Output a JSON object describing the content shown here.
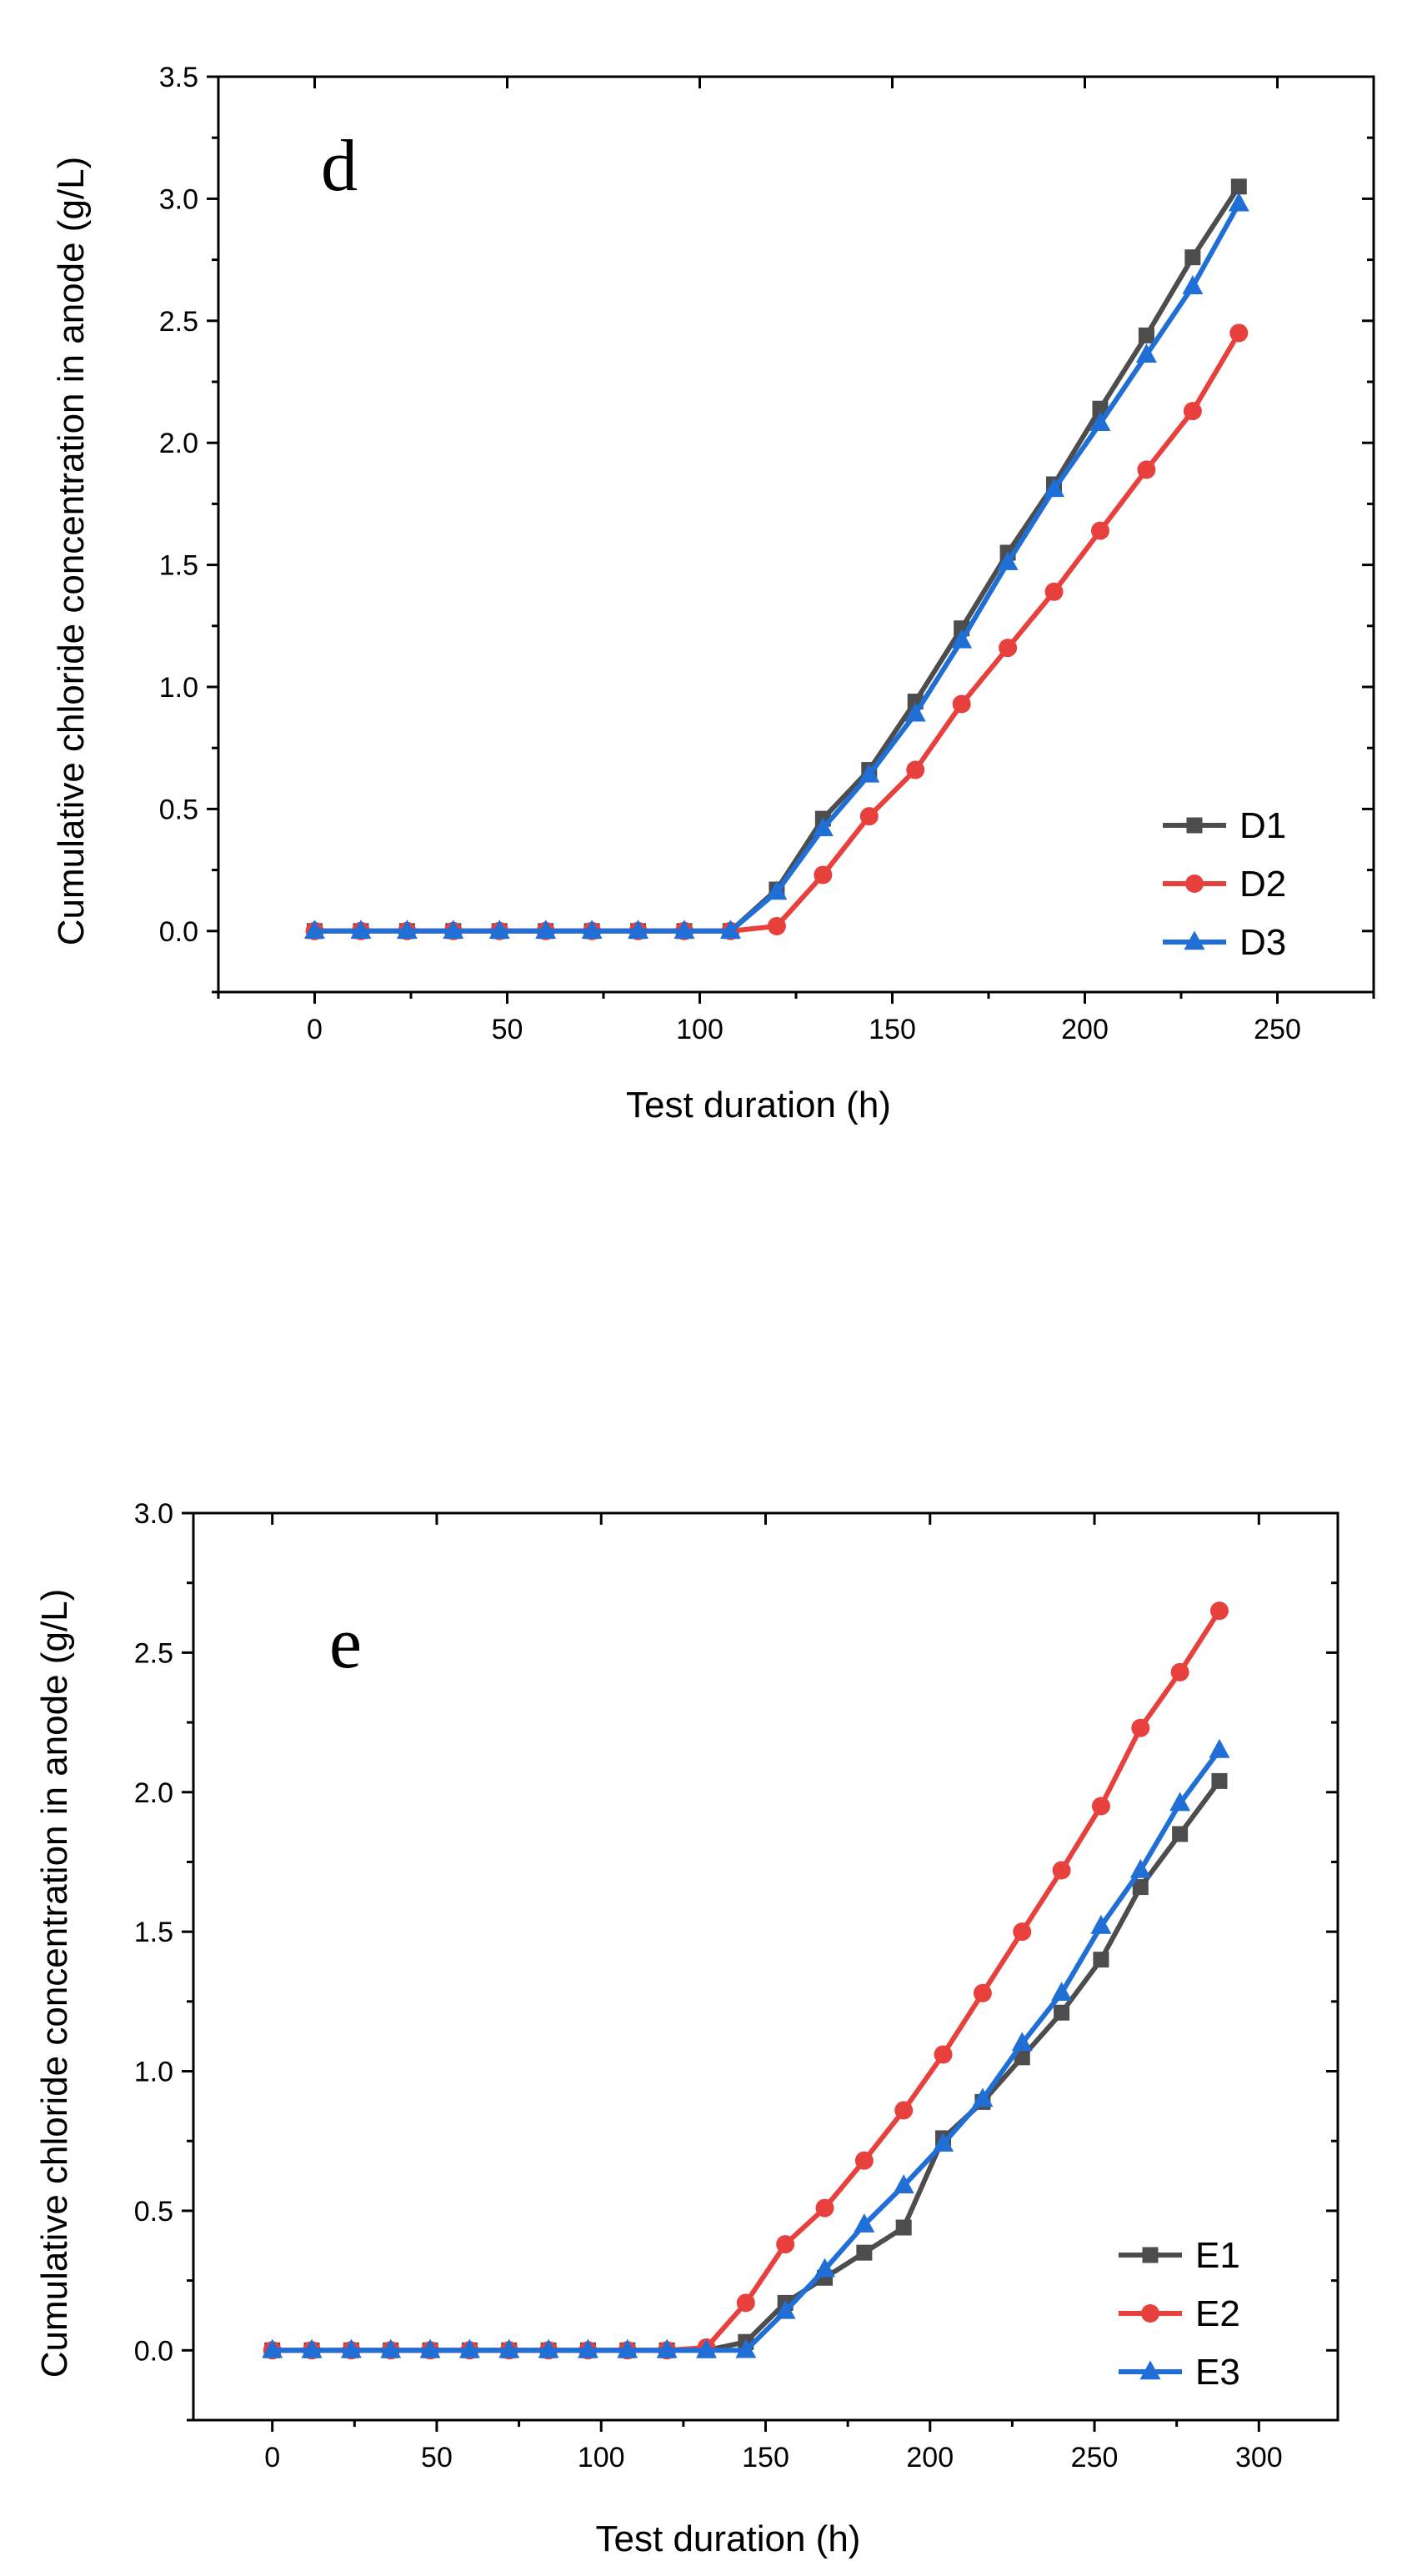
{
  "chart_data": [
    {
      "type": "line",
      "panel_label": "d",
      "xlabel": "Test duration (h)",
      "ylabel": "Cumulative chloride concentration in anode (g/L)",
      "xlim": [
        -25,
        275
      ],
      "ylim": [
        -0.25,
        3.5
      ],
      "x_ticks": [
        0,
        50,
        100,
        150,
        200,
        250
      ],
      "x_tick_labels": [
        "0",
        "50",
        "100",
        "150",
        "200",
        "250"
      ],
      "y_ticks": [
        0,
        0.5,
        1.0,
        1.5,
        2.0,
        2.5,
        3.0,
        3.5
      ],
      "y_tick_labels": [
        "0.0",
        "0.5",
        "1.0",
        "1.5",
        "2.0",
        "2.5",
        "3.0",
        "3.5"
      ],
      "legend_position": "bottom-right",
      "x": [
        0,
        12,
        24,
        36,
        48,
        60,
        72,
        84,
        96,
        108,
        120,
        132,
        144,
        156,
        168,
        180,
        192,
        204,
        216,
        228,
        240
      ],
      "series": [
        {
          "name": "D1",
          "color": "#4d4d4d",
          "marker": "square",
          "values": [
            0,
            0,
            0,
            0,
            0,
            0,
            0,
            0,
            0,
            0,
            0.17,
            0.46,
            0.66,
            0.94,
            1.24,
            1.55,
            1.83,
            2.14,
            2.44,
            2.76,
            3.05
          ]
        },
        {
          "name": "D2",
          "color": "#e8403c",
          "marker": "circle",
          "values": [
            0,
            0,
            0,
            0,
            0,
            0,
            0,
            0,
            0,
            0,
            0.02,
            0.23,
            0.47,
            0.66,
            0.93,
            1.16,
            1.39,
            1.64,
            1.89,
            2.13,
            2.45
          ]
        },
        {
          "name": "D3",
          "color": "#1f6fd6",
          "marker": "triangle",
          "values": [
            0,
            0,
            0,
            0,
            0,
            0,
            0,
            0,
            0,
            0,
            0.16,
            0.42,
            0.64,
            0.89,
            1.19,
            1.51,
            1.81,
            2.08,
            2.36,
            2.64,
            2.98
          ]
        }
      ]
    },
    {
      "type": "line",
      "panel_label": "e",
      "xlabel": "Test duration (h)",
      "ylabel": "Cumulative chloride concentration in anode (g/L)",
      "xlim": [
        -24,
        324
      ],
      "ylim": [
        -0.25,
        3.0
      ],
      "x_ticks": [
        0,
        50,
        100,
        150,
        200,
        250,
        300
      ],
      "x_tick_labels": [
        "0",
        "50",
        "100",
        "150",
        "200",
        "250",
        "300"
      ],
      "y_ticks": [
        0,
        0.5,
        1.0,
        1.5,
        2.0,
        2.5,
        3.0
      ],
      "y_tick_labels": [
        "0.0",
        "0.5",
        "1.0",
        "1.5",
        "2.0",
        "2.5",
        "3.0"
      ],
      "legend_position": "bottom-right",
      "x": [
        0,
        12,
        24,
        36,
        48,
        60,
        72,
        84,
        96,
        108,
        120,
        132,
        144,
        156,
        168,
        180,
        192,
        204,
        216,
        228,
        240,
        252,
        264,
        276,
        288
      ],
      "series": [
        {
          "name": "E1",
          "color": "#4d4d4d",
          "marker": "square",
          "values": [
            0,
            0,
            0,
            0,
            0,
            0,
            0,
            0,
            0,
            0,
            0,
            0,
            0.03,
            0.17,
            0.26,
            0.35,
            0.44,
            0.76,
            0.89,
            1.05,
            1.21,
            1.4,
            1.66,
            1.85,
            2.04
          ]
        },
        {
          "name": "E2",
          "color": "#e8403c",
          "marker": "circle",
          "values": [
            0,
            0,
            0,
            0,
            0,
            0,
            0,
            0,
            0,
            0,
            0,
            0.01,
            0.17,
            0.38,
            0.51,
            0.68,
            0.86,
            1.06,
            1.28,
            1.5,
            1.72,
            1.95,
            2.23,
            2.43,
            2.65
          ]
        },
        {
          "name": "E3",
          "color": "#1f6fd6",
          "marker": "triangle",
          "values": [
            0,
            0,
            0,
            0,
            0,
            0,
            0,
            0,
            0,
            0,
            0,
            0,
            0,
            0.14,
            0.29,
            0.45,
            0.59,
            0.74,
            0.9,
            1.1,
            1.28,
            1.52,
            1.72,
            1.96,
            2.15
          ]
        }
      ]
    }
  ]
}
